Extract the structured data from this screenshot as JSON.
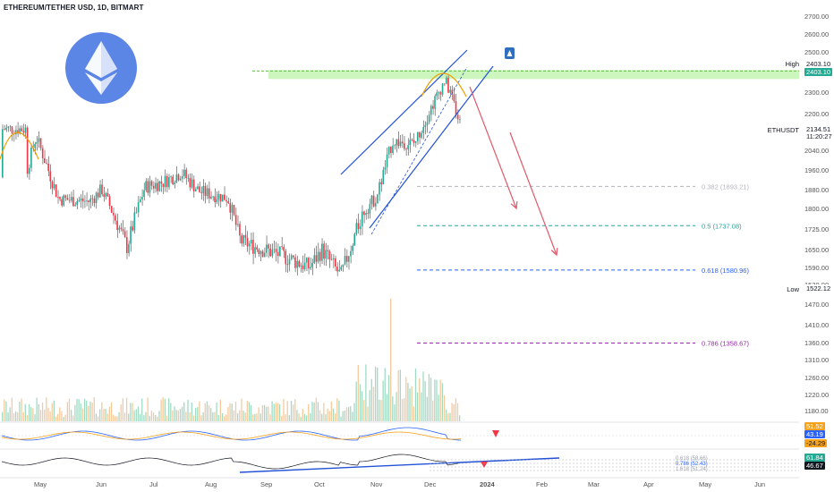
{
  "header": {
    "title": "ETHEREUM/TETHER USD, 1D, BITMART"
  },
  "colors": {
    "up": "#22ab94",
    "down": "#f23645",
    "channel": "#2352d8",
    "resistance_band": "#c8f5b8",
    "resistance_line": "#5cc13a",
    "arrow": "#e05a6a",
    "top_arc": "#f0a000",
    "fib_382": "#b2b5be",
    "fib_5": "#26a69a",
    "fib_618": "#2962ff",
    "fib_786": "#9c27b0",
    "logo_bg": "#5b86e5"
  },
  "labels": {
    "high": "High",
    "high_value": "2403.10",
    "low": "Low",
    "low_value": "1522.12",
    "ticker": "ETHUSDT",
    "price": "2134.51",
    "countdown": "11:20:27",
    "osc_a": "43.19",
    "osc_b": "-24.29",
    "osc_c": "61.84",
    "osc_d": "46.67",
    "osc_top": "51.52"
  },
  "fibs": [
    {
      "label": "0.382 (1893.21)",
      "value": 1893.21,
      "key": "fib_382"
    },
    {
      "label": "0.5 (1737.08)",
      "value": 1737.08,
      "key": "fib_5"
    },
    {
      "label": "0.618 (1580.96)",
      "value": 1580.96,
      "key": "fib_618"
    },
    {
      "label": "0.786 (1358.67)",
      "value": 1358.67,
      "key": "fib_786"
    }
  ],
  "lower_fibs": [
    {
      "label": "0.618 (58.66)"
    },
    {
      "label": "0.786 (52.43)"
    },
    {
      "label": "1.618 (51.24)"
    }
  ],
  "chart_data": {
    "type": "candlestick",
    "title": "ETHEREUM/TETHER USD, 1D, BITMART",
    "y_ticks": [
      2700,
      2600,
      2500,
      2400,
      2300,
      2200,
      2120,
      2040,
      1960,
      1880,
      1800,
      1725,
      1650,
      1590,
      1530,
      1470,
      1410,
      1360,
      1310,
      1260,
      1220,
      1180
    ],
    "x_ticks": [
      "May",
      "Jun",
      "Jul",
      "Aug",
      "Sep",
      "Oct",
      "Nov",
      "Dec",
      "2024",
      "Feb",
      "Mar",
      "Apr",
      "May",
      "Jun"
    ],
    "series": [
      {
        "name": "ETHUSDT",
        "ohlc_approx": [
          [
            "2023-04-20",
            1930,
            1960,
            1900,
            1940
          ],
          [
            "2023-04-28",
            1900,
            2120,
            1880,
            2100
          ],
          [
            "2023-05-10",
            1880,
            1900,
            1790,
            1840
          ],
          [
            "2023-05-25",
            1810,
            1850,
            1780,
            1830
          ],
          [
            "2023-06-01",
            1860,
            1890,
            1850,
            1880
          ],
          [
            "2023-06-15",
            1740,
            1750,
            1640,
            1660
          ],
          [
            "2023-06-25",
            1880,
            1900,
            1860,
            1890
          ],
          [
            "2023-07-05",
            1900,
            2000,
            1880,
            1910
          ],
          [
            "2023-07-15",
            1960,
            2030,
            1940,
            1950
          ],
          [
            "2023-07-25",
            1860,
            1880,
            1840,
            1870
          ],
          [
            "2023-08-10",
            1850,
            1860,
            1830,
            1845
          ],
          [
            "2023-08-17",
            1810,
            1820,
            1560,
            1680
          ],
          [
            "2023-08-25",
            1650,
            1680,
            1640,
            1660
          ],
          [
            "2023-09-10",
            1620,
            1640,
            1540,
            1630
          ],
          [
            "2023-09-25",
            1590,
            1600,
            1570,
            1590
          ],
          [
            "2023-10-02",
            1720,
            1730,
            1640,
            1650
          ],
          [
            "2023-10-12",
            1560,
            1580,
            1530,
            1560
          ],
          [
            "2023-10-24",
            1780,
            1830,
            1770,
            1790
          ],
          [
            "2023-11-01",
            1850,
            1860,
            1820,
            1850
          ],
          [
            "2023-11-10",
            2070,
            2120,
            2040,
            2080
          ],
          [
            "2023-11-22",
            2060,
            2080,
            2020,
            2070
          ],
          [
            "2023-12-01",
            2090,
            2250,
            2080,
            2220
          ],
          [
            "2023-12-09",
            2380,
            2403.1,
            2340,
            2360
          ],
          [
            "2023-12-18",
            2190,
            2230,
            2120,
            2134.51
          ]
        ]
      }
    ],
    "high": 2403.1,
    "low": 1522.12,
    "last": 2134.51,
    "fib_levels": {
      "0.382": 1893.21,
      "0.5": 1737.08,
      "0.618": 1580.96,
      "0.786": 1358.67
    },
    "ylim": [
      1150,
      2760
    ],
    "grid": false
  }
}
